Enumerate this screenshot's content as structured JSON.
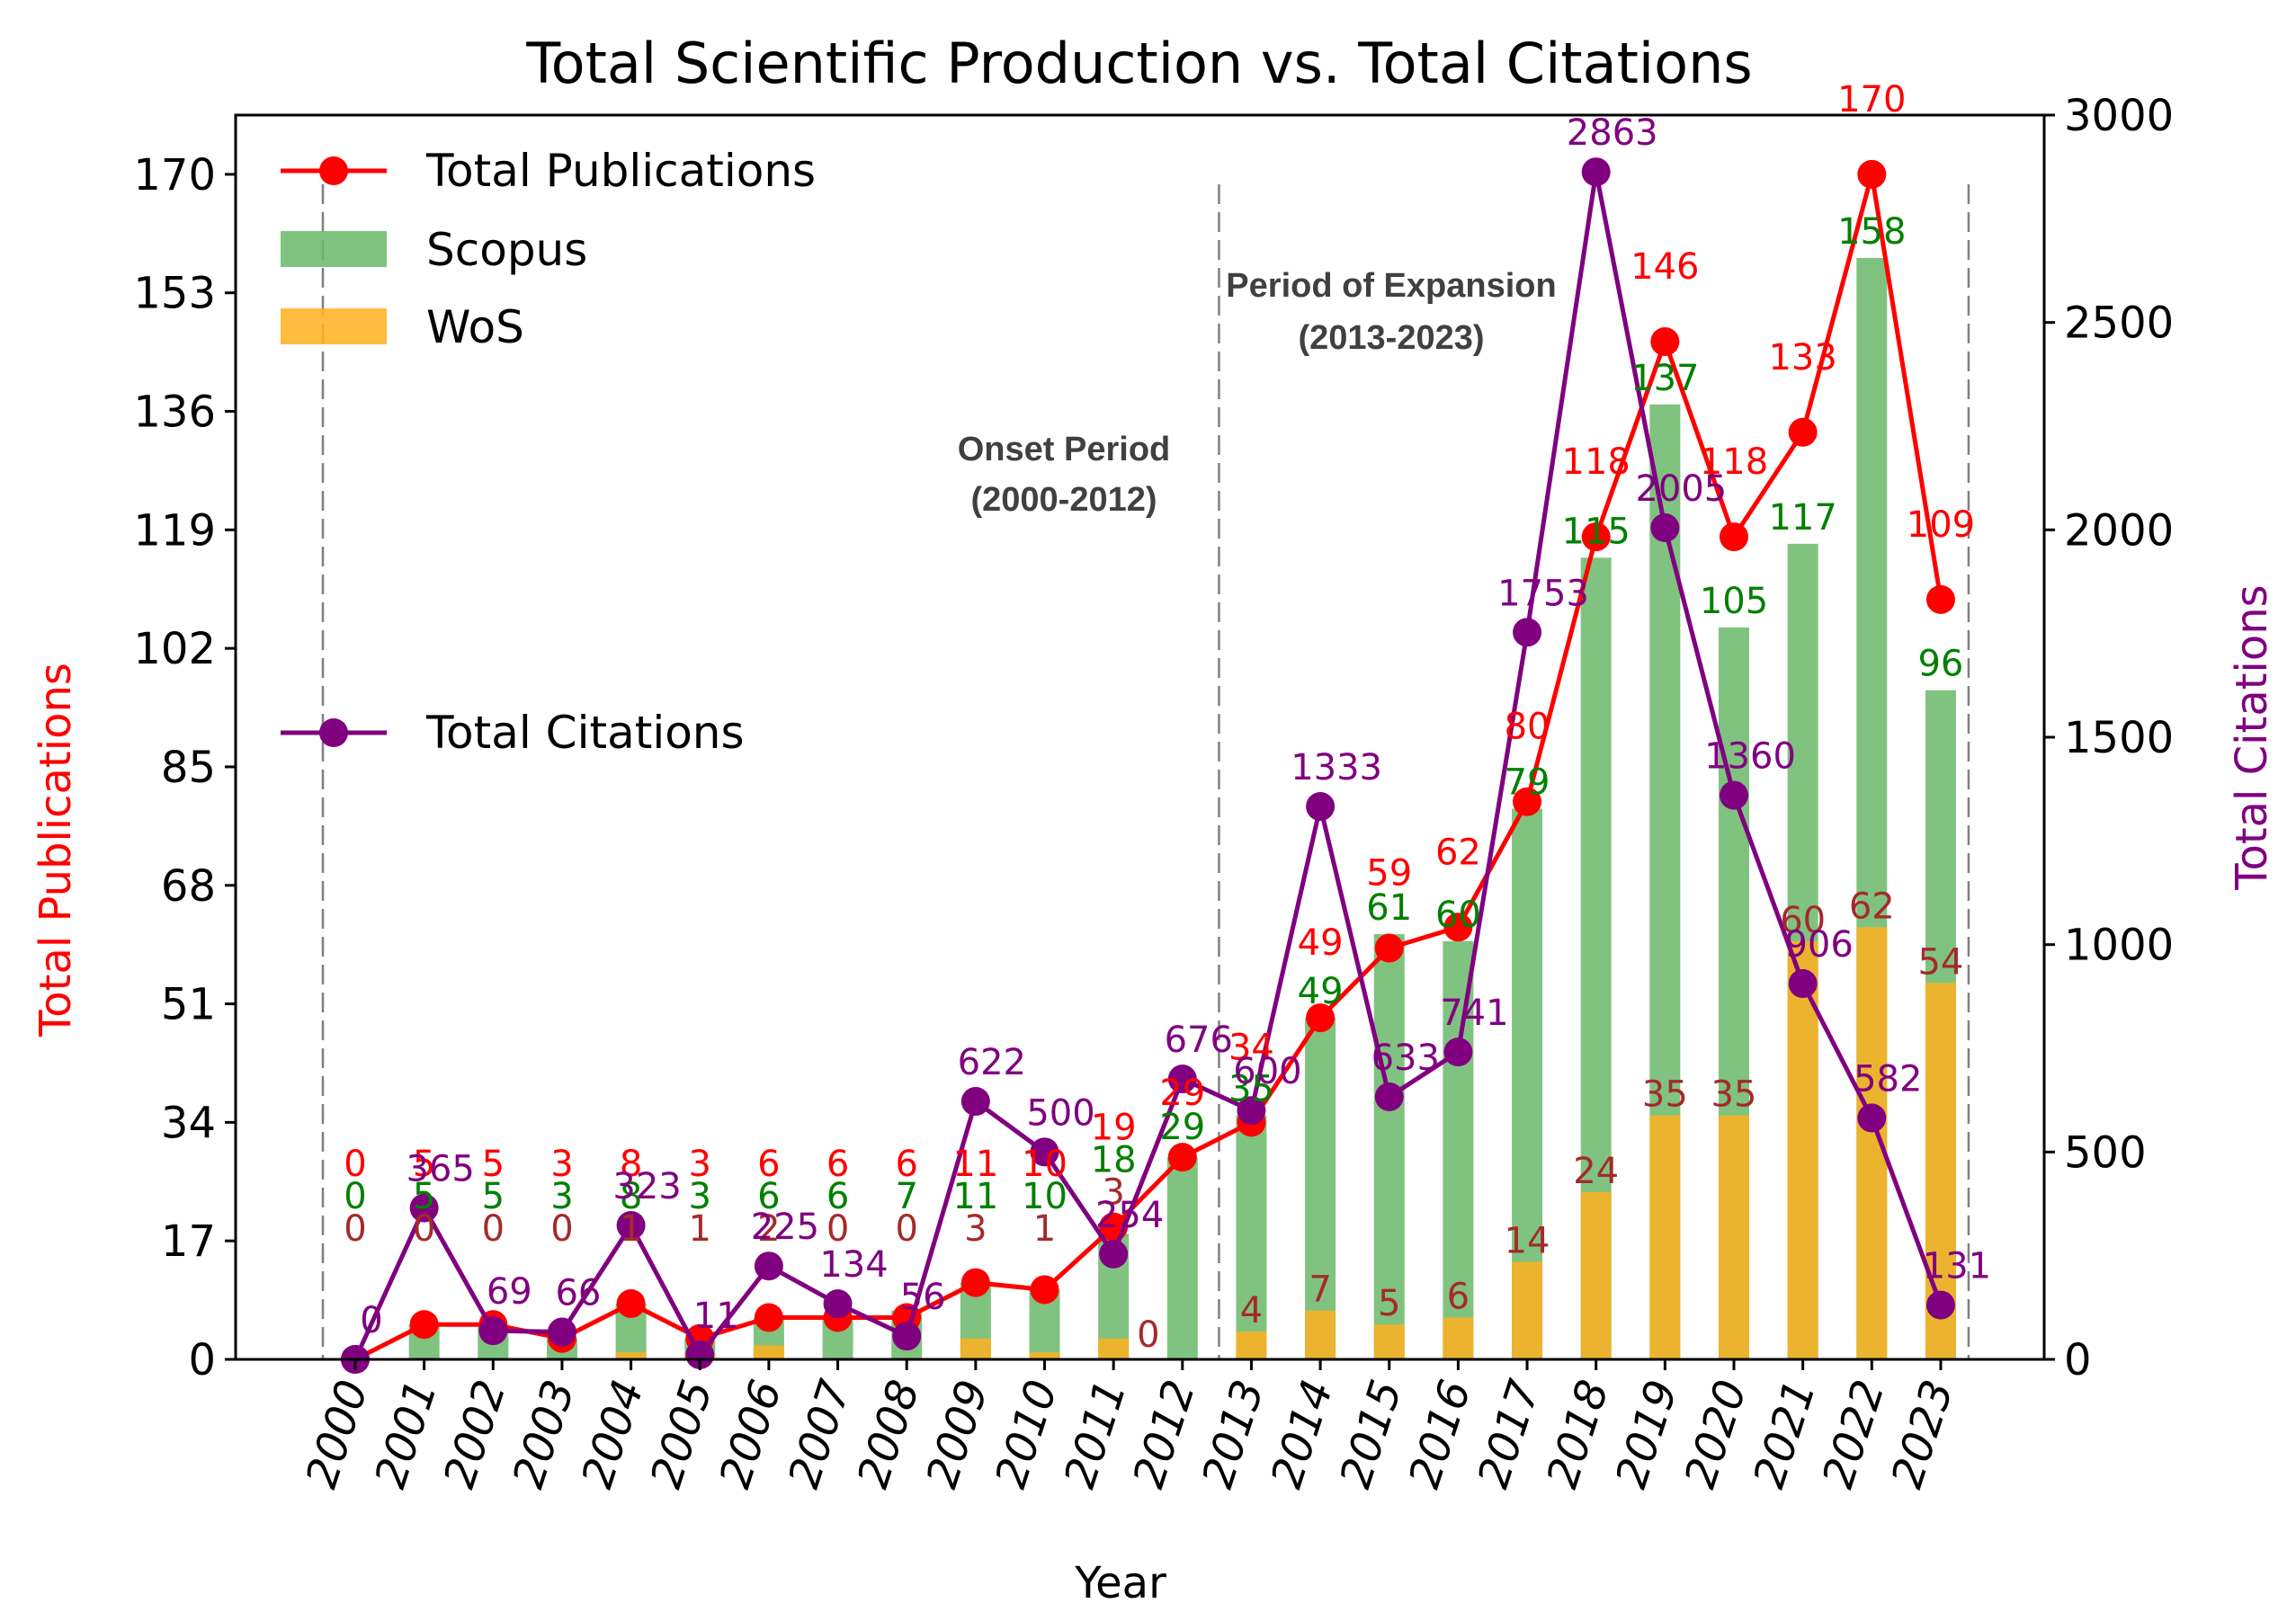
{
  "chart_data": {
    "type": "bar+line",
    "title": "Total Scientific Production vs. Total Citations",
    "xlabel": "Year",
    "ylabel_left": "Total Publications",
    "ylabel_right": "Total Citations",
    "categories": [
      "2000",
      "2001",
      "2002",
      "2003",
      "2004",
      "2005",
      "2006",
      "2007",
      "2008",
      "2009",
      "2010",
      "2011",
      "2012",
      "2013",
      "2014",
      "2015",
      "2016",
      "2017",
      "2018",
      "2019",
      "2020",
      "2021",
      "2022",
      "2023"
    ],
    "left_ticks": [
      "0",
      "17",
      "34",
      "51",
      "68",
      "85",
      "102",
      "119",
      "136",
      "153",
      "170"
    ],
    "right_ticks": [
      "0",
      "500",
      "1000",
      "1500",
      "2000",
      "2500",
      "3000"
    ],
    "ylim_left": [
      0,
      178.5
    ],
    "ylim_right": [
      0,
      3000
    ],
    "series": [
      {
        "name": "Total Publications",
        "kind": "line",
        "axis": "left",
        "color": "#ff0000",
        "values": [
          0,
          5,
          5,
          3,
          8,
          3,
          6,
          6,
          6,
          11,
          10,
          19,
          29,
          34,
          49,
          59,
          62,
          80,
          118,
          146,
          118,
          133,
          170,
          109
        ],
        "labels": [
          "0",
          "5",
          "5",
          "3",
          "8",
          "3",
          "6",
          "6",
          "6",
          "11",
          "10",
          "19",
          "29",
          "34",
          "49",
          "59",
          "62",
          "80",
          "118",
          "146",
          "118",
          "133",
          "170",
          "109"
        ]
      },
      {
        "name": "Scopus",
        "kind": "bar",
        "axis": "left",
        "color": "#6ab96a",
        "values": [
          0,
          5,
          5,
          3,
          8,
          3,
          6,
          6,
          7,
          11,
          10,
          18,
          29,
          35,
          49,
          61,
          60,
          79,
          115,
          137,
          105,
          117,
          158,
          96
        ],
        "labels": [
          "0",
          "5",
          "5",
          "3",
          "8",
          "3",
          "6",
          "6",
          "7",
          "11",
          "10",
          "18",
          "29",
          "35",
          "49",
          "61",
          "60",
          "79",
          "115",
          "137",
          "105",
          "117",
          "158",
          "96"
        ]
      },
      {
        "name": "WoS",
        "kind": "bar",
        "axis": "left",
        "color": "#ffb020",
        "values": [
          0,
          0,
          0,
          0,
          1,
          1,
          2,
          0,
          0,
          3,
          1,
          3,
          0,
          4,
          7,
          5,
          6,
          14,
          24,
          35,
          35,
          60,
          62,
          54
        ],
        "labels": [
          "0",
          "0",
          "0",
          "0",
          "1",
          "1",
          "2",
          "0",
          "0",
          "3",
          "1",
          "3",
          "0",
          "4",
          "7",
          "5",
          "6",
          "14",
          "24",
          "35",
          "35",
          "60",
          "62",
          "54"
        ]
      },
      {
        "name": "Total Citations",
        "kind": "line",
        "axis": "right",
        "color": "#800080",
        "values": [
          0,
          365,
          69,
          66,
          323,
          11,
          225,
          134,
          56,
          622,
          500,
          254,
          676,
          600,
          1333,
          633,
          741,
          1753,
          2863,
          2005,
          1360,
          906,
          582,
          131
        ],
        "labels": [
          "0",
          "365",
          "69",
          "66",
          "323",
          "11",
          "225",
          "134",
          "56",
          "622",
          "500",
          "254",
          "676",
          "600",
          "1333",
          "633",
          "741",
          "1753",
          "2863",
          "2005",
          "1360",
          "906",
          "582",
          "131"
        ]
      }
    ],
    "legend": [
      "Total Publications",
      "Scopus",
      "WoS",
      "Total Citations"
    ],
    "legend_position": "top-left",
    "periods": [
      {
        "line1": "Onset Period",
        "line2": "(2000-2012)",
        "start_year": "2000"
      },
      {
        "line1": "Period of Expansion",
        "line2": "(2013-2023)",
        "start_year": "2013"
      }
    ]
  }
}
